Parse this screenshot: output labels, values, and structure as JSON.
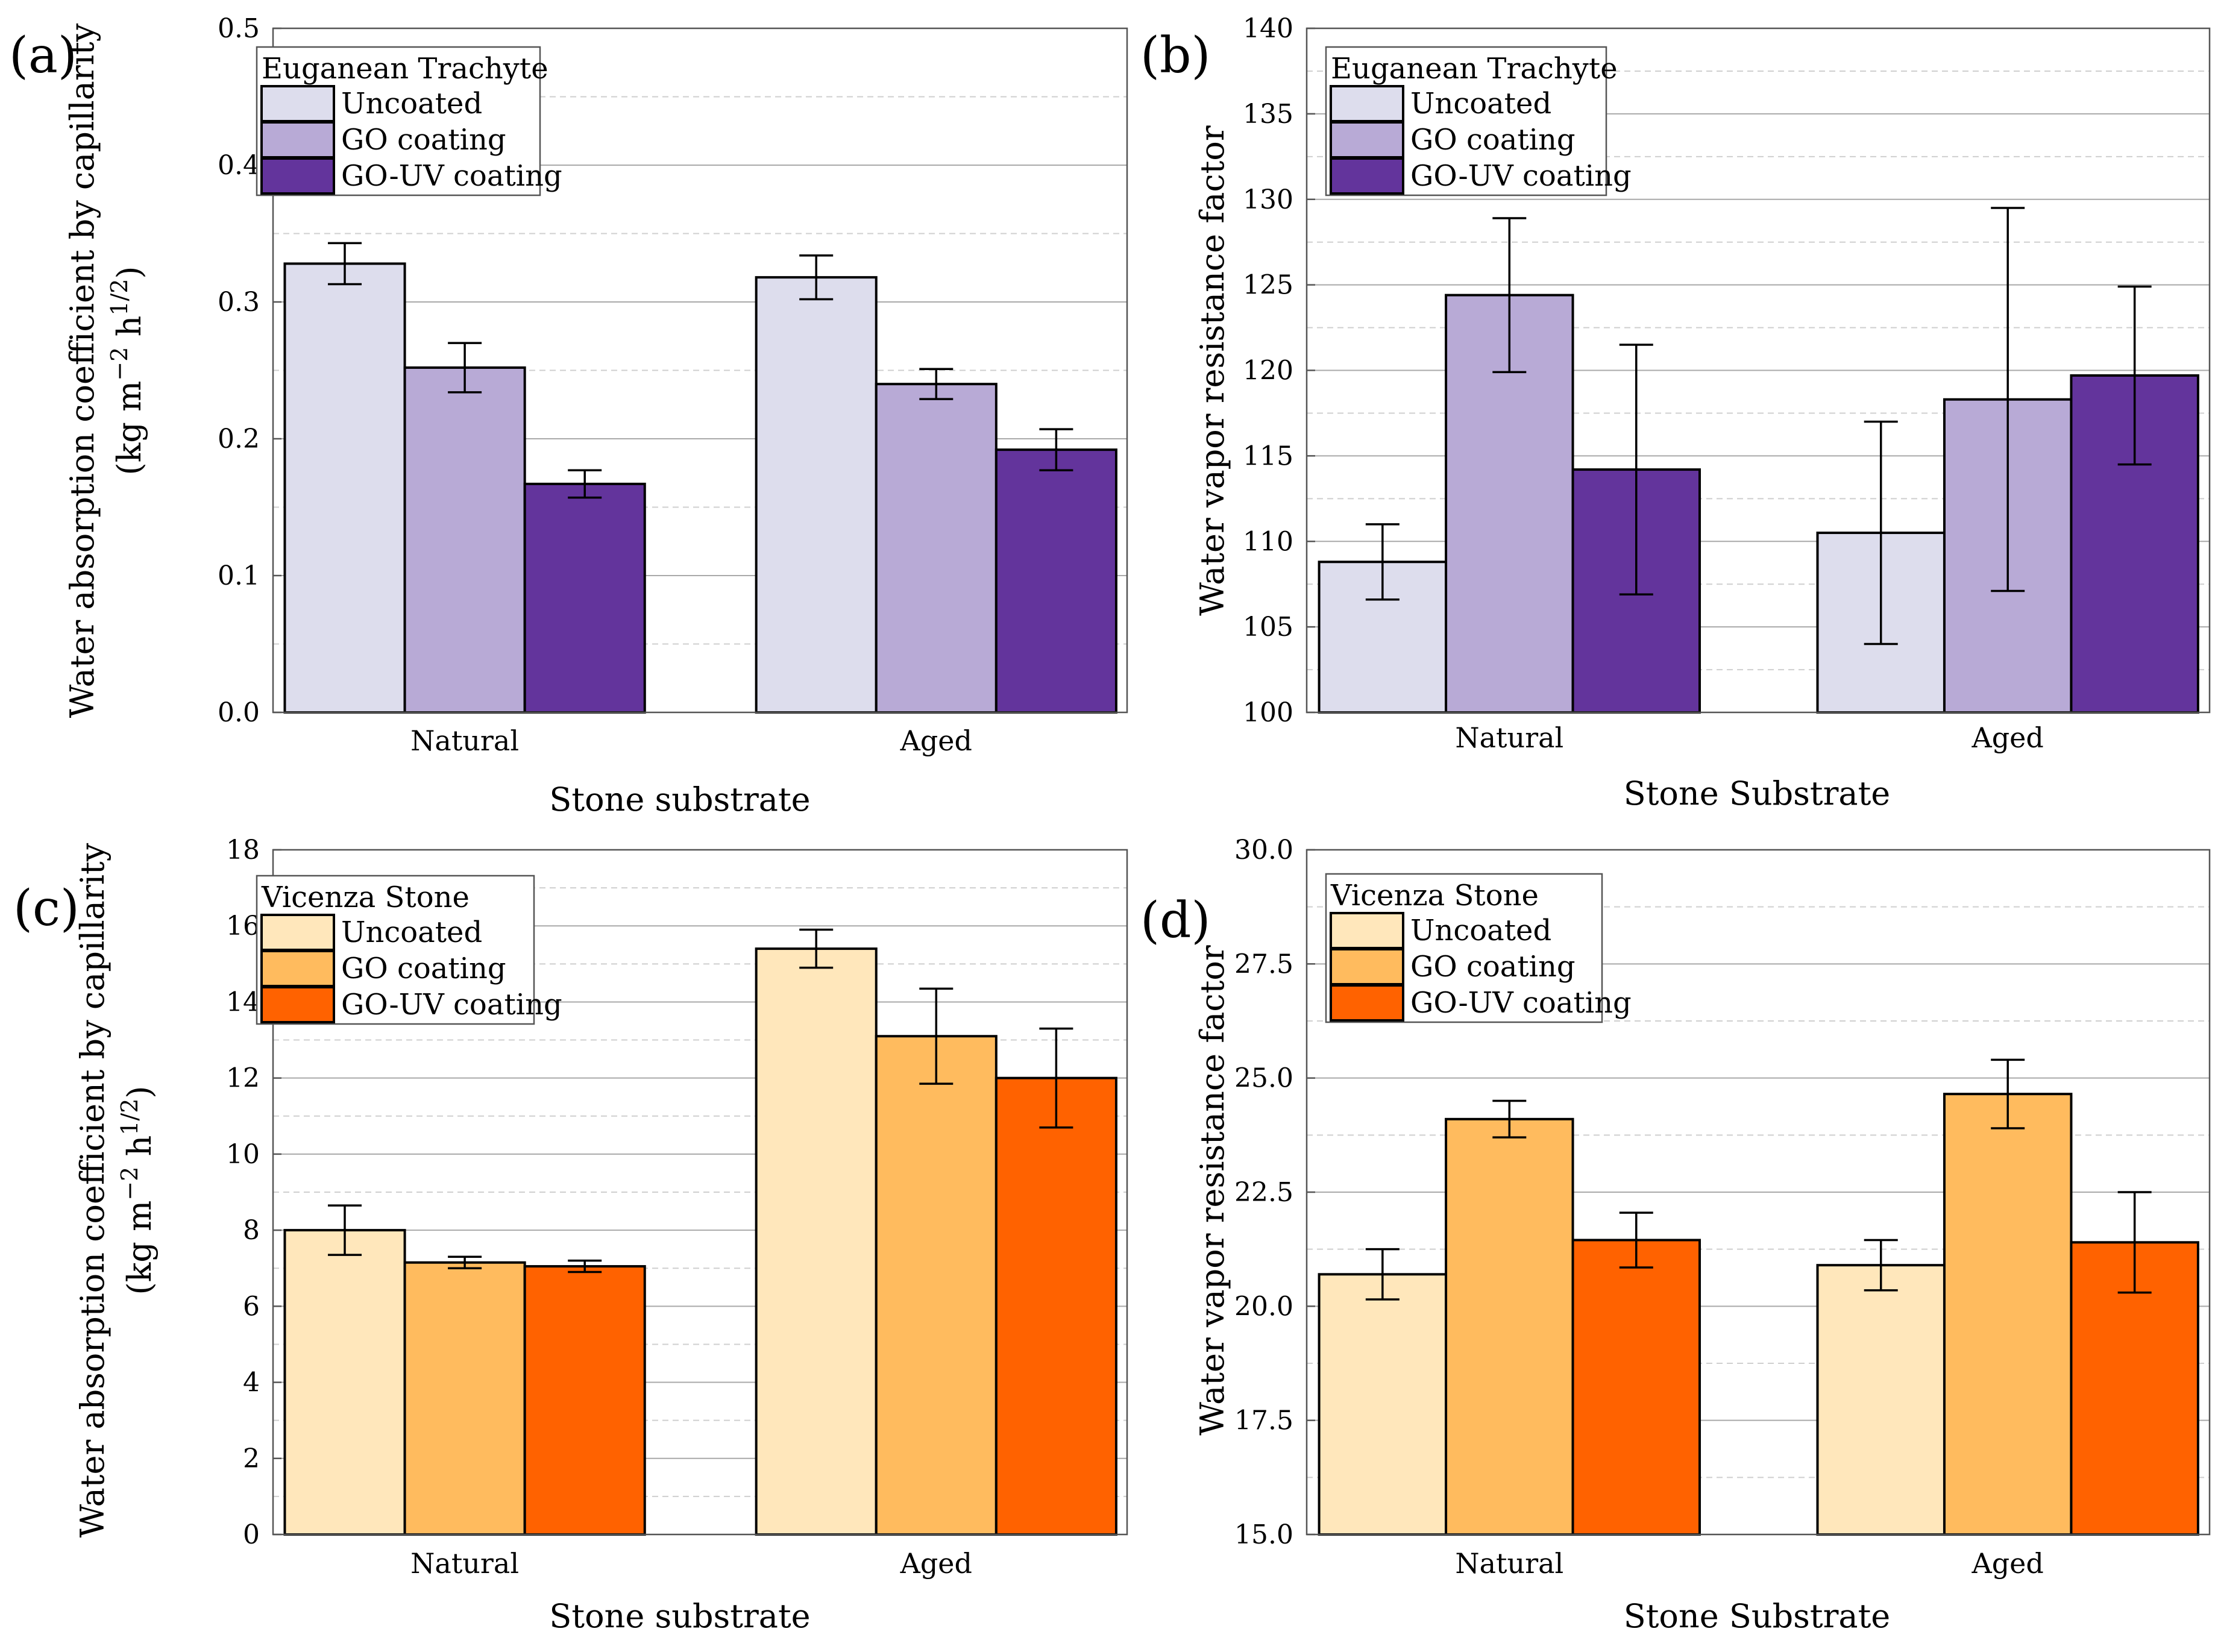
{
  "figure": {
    "panels": [
      "(a)",
      "(b)",
      "(c)",
      "(d)"
    ]
  },
  "chart_data": [
    {
      "panel": "(a)",
      "type": "bar",
      "legend_title": "Euganean Trachyte",
      "categories": [
        "Natural",
        "Aged"
      ],
      "series": [
        {
          "name": "Uncoated",
          "color": "#dddded",
          "values": [
            0.328,
            0.318
          ],
          "errors": [
            0.015,
            0.016
          ]
        },
        {
          "name": "GO coating",
          "color": "#b8aad6",
          "values": [
            0.252,
            0.24
          ],
          "errors": [
            0.018,
            0.011
          ]
        },
        {
          "name": "GO-UV coating",
          "color": "#63349c",
          "values": [
            0.167,
            0.192
          ],
          "errors": [
            0.01,
            0.015
          ]
        }
      ],
      "xlabel": "Stone substrate",
      "ylabel": "Water absorption coefficient by capillarity",
      "ylabel_line2_prefix": "(kg m",
      "ylabel_sup1": "−2",
      "ylabel_mid": " h",
      "ylabel_sup2": "1/2",
      "ylabel_suffix": ")",
      "ylim": [
        0.0,
        0.5
      ],
      "yticks": [
        0.0,
        0.1,
        0.2,
        0.3,
        0.4,
        0.5
      ],
      "ytick_labels": [
        "0.0",
        "0.1",
        "0.2",
        "0.3",
        "0.4",
        "0.5"
      ],
      "grid": true,
      "legend": "top-left"
    },
    {
      "panel": "(b)",
      "type": "bar",
      "legend_title": "Euganean Trachyte",
      "categories": [
        "Natural",
        "Aged"
      ],
      "series": [
        {
          "name": "Uncoated",
          "color": "#dddded",
          "values": [
            108.8,
            110.5
          ],
          "errors": [
            2.2,
            6.5
          ]
        },
        {
          "name": "GO coating",
          "color": "#b8aad6",
          "values": [
            124.4,
            118.3
          ],
          "errors": [
            4.5,
            11.2
          ]
        },
        {
          "name": "GO-UV coating",
          "color": "#63349c",
          "values": [
            114.2,
            119.7
          ],
          "errors": [
            7.3,
            5.2
          ]
        }
      ],
      "xlabel": "Stone Substrate",
      "ylabel": "Water vapor resistance factor",
      "ylim": [
        100,
        140
      ],
      "yticks": [
        100,
        105,
        110,
        115,
        120,
        125,
        130,
        135,
        140
      ],
      "ytick_labels": [
        "100",
        "105",
        "110",
        "115",
        "120",
        "125",
        "130",
        "135",
        "140"
      ],
      "grid": true,
      "legend": "top-left"
    },
    {
      "panel": "(c)",
      "type": "bar",
      "legend_title": "Vicenza Stone",
      "categories": [
        "Natural",
        "Aged"
      ],
      "series": [
        {
          "name": "Uncoated",
          "color": "#ffe7bb",
          "values": [
            8.0,
            15.4
          ],
          "errors": [
            0.65,
            0.5
          ]
        },
        {
          "name": "GO coating",
          "color": "#ffbb5e",
          "values": [
            7.15,
            13.1
          ],
          "errors": [
            0.15,
            1.25
          ]
        },
        {
          "name": "GO-UV coating",
          "color": "#ff6200",
          "values": [
            7.05,
            12.0
          ],
          "errors": [
            0.15,
            1.3
          ]
        }
      ],
      "xlabel": "Stone substrate",
      "ylabel": "Water absorption coefficient by capillarity",
      "ylabel_line2_prefix": "(kg m",
      "ylabel_sup1": "−2",
      "ylabel_mid": " h",
      "ylabel_sup2": "1/2",
      "ylabel_suffix": ")",
      "ylim": [
        0,
        18
      ],
      "yticks": [
        0,
        2,
        4,
        6,
        8,
        10,
        12,
        14,
        16,
        18
      ],
      "ytick_labels": [
        "0",
        "2",
        "4",
        "6",
        "8",
        "10",
        "12",
        "14",
        "16",
        "18"
      ],
      "grid": true,
      "legend": "top-left"
    },
    {
      "panel": "(d)",
      "type": "bar",
      "legend_title": "Vicenza Stone",
      "categories": [
        "Natural",
        "Aged"
      ],
      "series": [
        {
          "name": "Uncoated",
          "color": "#ffe7bb",
          "values": [
            20.7,
            20.9
          ],
          "errors": [
            0.55,
            0.55
          ]
        },
        {
          "name": "GO coating",
          "color": "#ffbb5e",
          "values": [
            24.1,
            24.65
          ],
          "errors": [
            0.4,
            0.75
          ]
        },
        {
          "name": "GO-UV coating",
          "color": "#ff6200",
          "values": [
            21.45,
            21.4
          ],
          "errors": [
            0.6,
            1.1
          ]
        }
      ],
      "xlabel": "Stone Substrate",
      "ylabel": "Water vapor resistance factor",
      "ylim": [
        15.0,
        30.0
      ],
      "yticks": [
        15.0,
        17.5,
        20.0,
        22.5,
        25.0,
        27.5,
        30.0
      ],
      "ytick_labels": [
        "15.0",
        "17.5",
        "20.0",
        "22.5",
        "25.0",
        "27.5",
        "30.0"
      ],
      "grid": true,
      "legend": "top-left"
    }
  ]
}
